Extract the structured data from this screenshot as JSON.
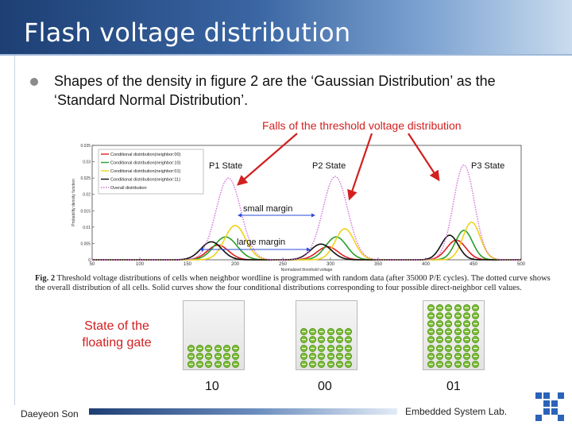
{
  "slide": {
    "title": "Flash voltage distribution",
    "bullet": "Shapes of the density in figure 2 are the ‘Gaussian Distribution’ as the ‘Standard Normal Distribution’.",
    "falls_label": "Falls of the threshold voltage distribution",
    "state_label": "State of the floating gate",
    "cells": [
      {
        "label": "10",
        "level": 0.33
      },
      {
        "label": "00",
        "level": 0.67
      },
      {
        "label": "01",
        "level": 1.0
      }
    ],
    "footer_author": "Daeyeon Son",
    "footer_lab": "Embedded System Lab.",
    "caption_lead": "Fig. 2",
    "caption_body": "Threshold voltage distributions of cells when neighbor wordline is programmed with random data (after 35000 P/E cycles). The dotted curve shows the overall distribution of all cells. Solid curves show the four conditional distributions corresponding to four possible direct-neighbor cell values.",
    "colors": {
      "accent_red": "#d22020",
      "title_blue": "#1d3f74",
      "electron_green": "#7fbf3a"
    }
  },
  "chart_data": {
    "type": "line",
    "xlabel": "Normalized threshold voltage",
    "ylabel": "Probability density function",
    "xlim": [
      50,
      500
    ],
    "ylim": [
      0,
      0.035
    ],
    "xticks": [
      "50",
      "100",
      "150",
      "200",
      "250",
      "300",
      "350",
      "400",
      "450",
      "500"
    ],
    "yticks": [
      "0",
      "0.005",
      "0.01",
      "0.015",
      "0.02",
      "0.025",
      "0.03",
      "0.035"
    ],
    "legend": [
      "Conditional distribution(neighbor:00)",
      "Conditional distribution(neighbor:10)",
      "Conditional distribution(neighbor:01)",
      "Conditional distribution(neighbor:11)",
      "Overall distribution"
    ],
    "annotations": [
      "P1 State",
      "P2 State",
      "P3 State",
      "small margin",
      "large margin"
    ],
    "series": [
      {
        "name": "Conditional distribution(neighbor:00)",
        "color": "#e02020",
        "style": "solid",
        "peaks": [
          {
            "mu": 182,
            "sigma": 11,
            "amp": 0.0045
          },
          {
            "mu": 297,
            "sigma": 11,
            "amp": 0.004
          },
          {
            "mu": 432,
            "sigma": 10,
            "amp": 0.006
          }
        ]
      },
      {
        "name": "Conditional distribution(neighbor:10)",
        "color": "#2a9e2a",
        "style": "solid",
        "peaks": [
          {
            "mu": 190,
            "sigma": 12,
            "amp": 0.007
          },
          {
            "mu": 306,
            "sigma": 11,
            "amp": 0.007
          },
          {
            "mu": 440,
            "sigma": 9,
            "amp": 0.009
          }
        ]
      },
      {
        "name": "Conditional distribution(neighbor:01)",
        "color": "#f0d21a",
        "style": "solid",
        "peaks": [
          {
            "mu": 200,
            "sigma": 11,
            "amp": 0.0105
          },
          {
            "mu": 315,
            "sigma": 10,
            "amp": 0.0095
          },
          {
            "mu": 448,
            "sigma": 9,
            "amp": 0.0115
          }
        ]
      },
      {
        "name": "Conditional distribution(neighbor:11)",
        "color": "#111111",
        "style": "solid",
        "peaks": [
          {
            "mu": 175,
            "sigma": 11,
            "amp": 0.0055
          },
          {
            "mu": 290,
            "sigma": 11,
            "amp": 0.0048
          },
          {
            "mu": 425,
            "sigma": 9,
            "amp": 0.0075
          }
        ]
      },
      {
        "name": "Overall distribution",
        "color": "#d070d8",
        "style": "dotted",
        "peaks": [
          {
            "mu": 193,
            "sigma": 13,
            "amp": 0.025
          },
          {
            "mu": 305,
            "sigma": 13,
            "amp": 0.0255
          },
          {
            "mu": 440,
            "sigma": 11,
            "amp": 0.029
          }
        ]
      }
    ]
  }
}
